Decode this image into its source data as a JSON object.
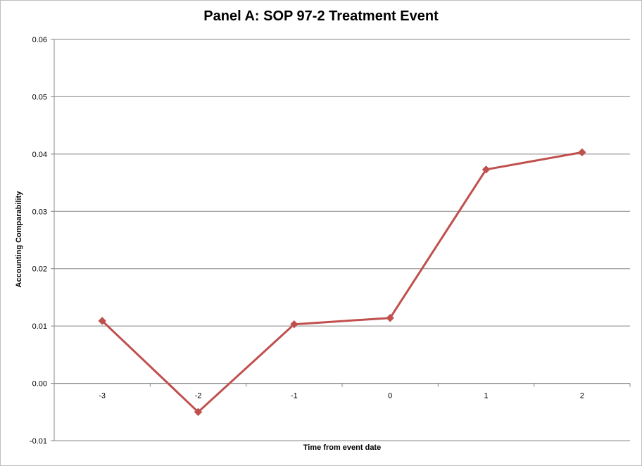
{
  "chart_data": {
    "type": "line",
    "title": "Panel A: SOP 97-2 Treatment Event",
    "xlabel": "Time from event date",
    "ylabel": "Accounting  Comparability",
    "categories": [
      "-3",
      "-2",
      "-1",
      "0",
      "1",
      "2"
    ],
    "series": [
      {
        "values": [
          0.0109,
          -0.005,
          0.0103,
          0.0114,
          0.0373,
          0.0403
        ]
      }
    ],
    "ylim": [
      -0.01,
      0.06
    ],
    "yticks": [
      "0.06",
      "0.05",
      "0.04",
      "0.03",
      "0.02",
      "0.01",
      "0.00",
      "-0.01"
    ],
    "grid": true,
    "line_color": "#c0504d"
  }
}
